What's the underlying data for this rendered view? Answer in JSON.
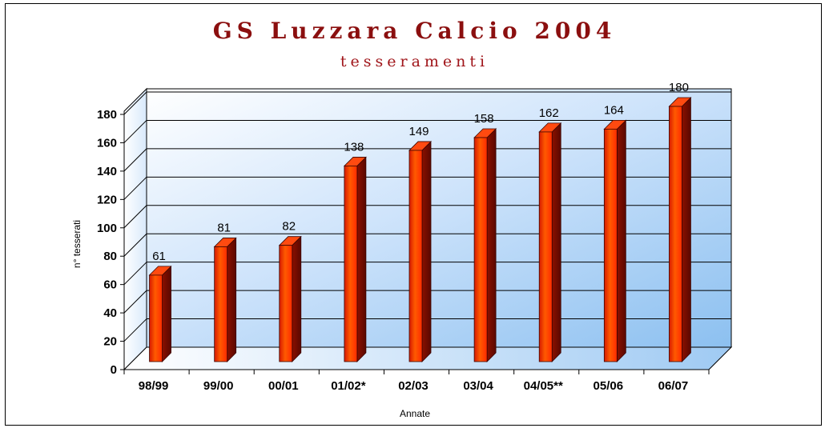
{
  "chart_data": {
    "type": "bar",
    "title": "GS Luzzara Calcio 2004",
    "subtitle": "tesseramenti",
    "xlabel": "Annate",
    "ylabel": "n° tesserati",
    "categories": [
      "98/99",
      "99/00",
      "00/01",
      "01/02*",
      "02/03",
      "03/04",
      "04/05**",
      "05/06",
      "06/07"
    ],
    "values": [
      61,
      81,
      82,
      138,
      149,
      158,
      162,
      164,
      180
    ],
    "ylim": [
      0,
      180
    ],
    "yticks": [
      "0",
      "20",
      "40",
      "60",
      "80",
      "100",
      "120",
      "140",
      "160",
      "180"
    ],
    "grid": true,
    "bar_color": "#ff3300"
  }
}
